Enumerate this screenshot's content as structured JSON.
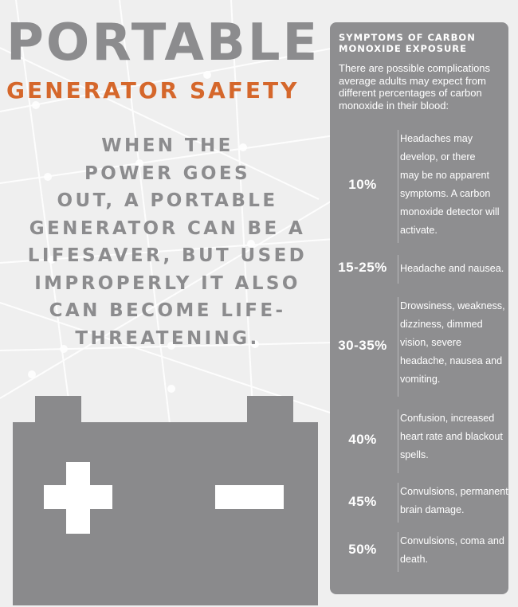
{
  "header": {
    "title": "PORTABLE",
    "subtitle": "GENERATOR SAFETY"
  },
  "intro_text": [
    "WHEN THE",
    "POWER GOES",
    "OUT, A PORTABLE",
    "GENERATOR CAN BE A",
    "LIFESAVER, BUT USED",
    "IMPROPERLY IT ALSO",
    "CAN BECOME LIFE-",
    "THREATENING."
  ],
  "symptoms": {
    "title_lines": [
      "SYMPTOMS OF CARBON",
      "MONOXIDE EXPOSURE"
    ],
    "intro": "There are possible complications average adults may expect from different percentages of carbon monoxide in their blood:",
    "levels": [
      {
        "percent": "10%",
        "lines": [
          "Headaches may",
          "develop, or there",
          "may be no apparent",
          "symptoms. A carbon",
          "monoxide detector will",
          "activate."
        ]
      },
      {
        "percent": "15-25%",
        "lines": [
          "Headache and nausea."
        ]
      },
      {
        "percent": "30-35%",
        "lines": [
          "Drowsiness, weakness,",
          "dizziness, dimmed",
          "vision, severe",
          "headache, nausea and",
          "vomiting."
        ]
      },
      {
        "percent": "40%",
        "lines": [
          "Confusion, increased",
          "heart rate and blackout",
          "spells."
        ]
      },
      {
        "percent": "45%",
        "lines": [
          "Convulsions, permanent",
          "brain damage."
        ]
      },
      {
        "percent": "50%",
        "lines": [
          "Convulsions, coma and",
          "death."
        ]
      }
    ]
  },
  "colors": {
    "title_gray": "#8c8c8e",
    "accent_orange": "#d5672b",
    "panel_gray": "#8e8e90",
    "battery_gray": "#8a8a8c",
    "background": "#efefef"
  },
  "icons": {
    "battery": "car-battery-icon",
    "plus": "plus-terminal-icon",
    "minus": "minus-terminal-icon"
  }
}
